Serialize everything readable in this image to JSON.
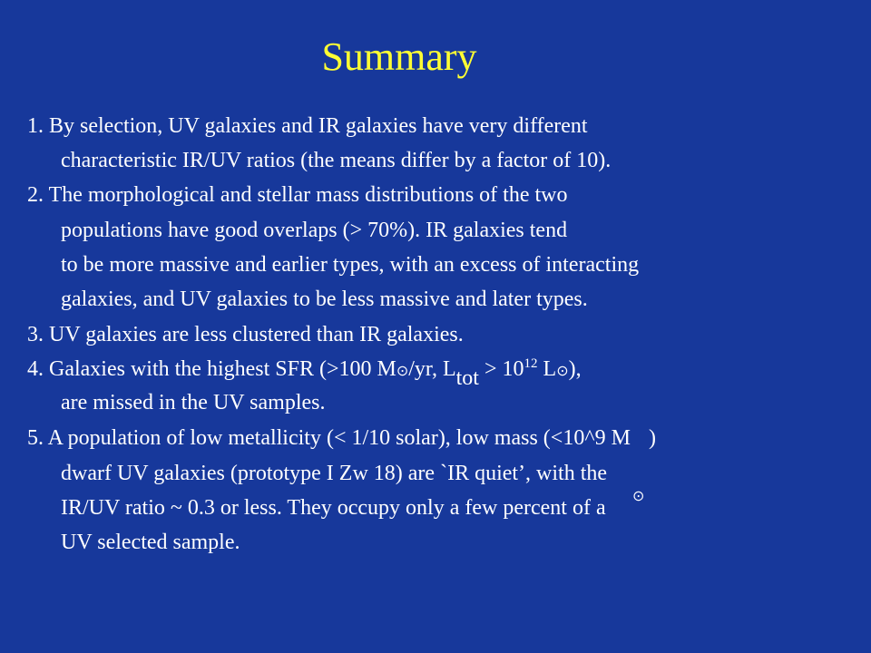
{
  "title": "Summary",
  "lines": [
    "1. By selection, UV galaxies and IR galaxies have very different",
    "characteristic IR/UV ratios (the means differ by a factor of 10).",
    "2. The morphological and stellar mass distributions of the two",
    "populations have good overlaps (> 70%). IR galaxies tend",
    "to be more massive and earlier types, with an excess of interacting",
    "galaxies, and UV galaxies to be less massive and later types.",
    "3. UV galaxies are less clustered than IR galaxies.",
    [
      "4. Galaxies with the highest SFR (>100 M",
      "⊙",
      "/yr, L",
      "tot",
      " > 10",
      "12",
      " L",
      "⊙",
      "),"
    ],
    "are missed in the UV samples.",
    [
      "5. A population of low metallicity (< 1/10 solar), low mass (<10^9 M",
      "⊙",
      ")"
    ],
    "dwarf UV galaxies (prototype I Zw 18) are `IR quiet’, with the",
    "IR/UV ratio ~ 0.3 or less. They occupy only a few percent of a",
    "UV selected sample."
  ]
}
